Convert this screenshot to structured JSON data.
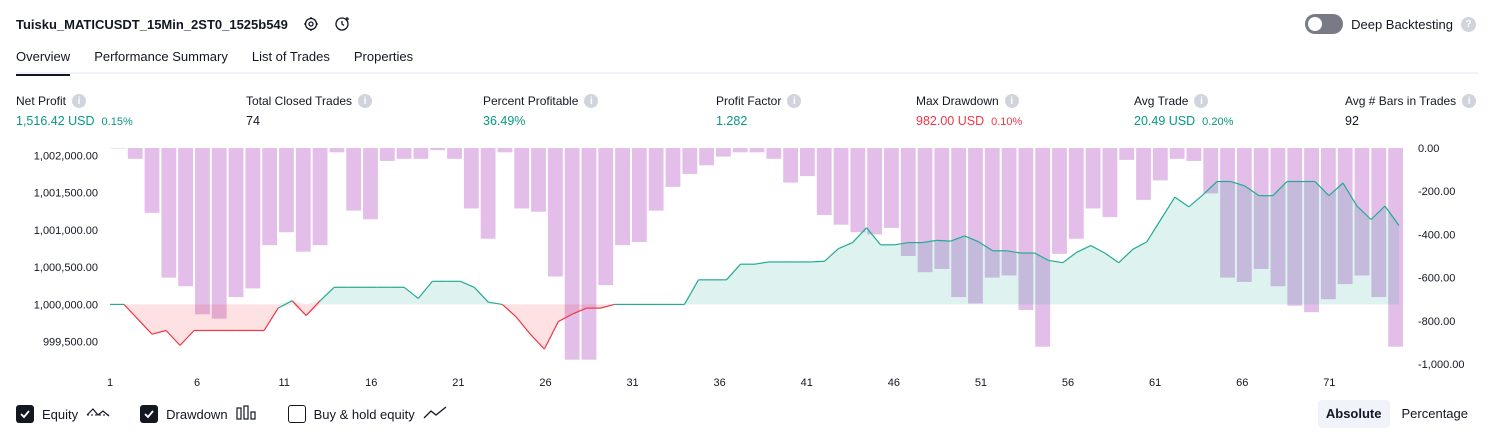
{
  "header": {
    "title": "Tuisku_MATICUSDT_15Min_2ST0_1525b549",
    "settings_icon": "gear-icon",
    "add_alert_icon": "clock-plus-icon",
    "deep_backtesting_label": "Deep Backtesting",
    "deep_backtesting_on": false
  },
  "tabs": [
    {
      "label": "Overview",
      "active": true
    },
    {
      "label": "Performance Summary",
      "active": false
    },
    {
      "label": "List of Trades",
      "active": false
    },
    {
      "label": "Properties",
      "active": false
    }
  ],
  "metrics": [
    {
      "label": "Net Profit",
      "value": "1,516.42 USD",
      "pct": "0.15%",
      "color": "green"
    },
    {
      "label": "Total Closed Trades",
      "value": "74",
      "pct": "",
      "color": "default"
    },
    {
      "label": "Percent Profitable",
      "value": "36.49%",
      "pct": "",
      "color": "green"
    },
    {
      "label": "Profit Factor",
      "value": "1.282",
      "pct": "",
      "color": "green"
    },
    {
      "label": "Max Drawdown",
      "value": "982.00 USD",
      "pct": "0.10%",
      "color": "red"
    },
    {
      "label": "Avg Trade",
      "value": "20.49 USD",
      "pct": "0.20%",
      "color": "green"
    },
    {
      "label": "Avg # Bars in Trades",
      "value": "92",
      "pct": "",
      "color": "default"
    }
  ],
  "chart_data": {
    "type": "line+bar",
    "x_ticks": [
      "1",
      "6",
      "11",
      "16",
      "21",
      "26",
      "31",
      "36",
      "41",
      "46",
      "51",
      "56",
      "61",
      "66",
      "71"
    ],
    "x_range": [
      1,
      75
    ],
    "left_axis": {
      "ticks": [
        "1,002,000.00",
        "1,001,500.00",
        "1,001,000.00",
        "1,000,500.00",
        "1,000,000.00",
        "999,500.00"
      ],
      "tick_values": [
        1002000,
        1001500,
        1001000,
        1000500,
        1000000,
        999500
      ],
      "range": [
        999200,
        1002100
      ]
    },
    "right_axis": {
      "ticks": [
        "0.00",
        "-200.00",
        "-400.00",
        "-600.00",
        "-800.00",
        "-1,000.00"
      ],
      "tick_values": [
        0,
        -200,
        -400,
        -600,
        -800,
        -1000
      ],
      "range": [
        -1000,
        0
      ]
    },
    "baseline": 1000000,
    "series": [
      {
        "name": "Equity",
        "axis": "left",
        "values": [
          1000000,
          1000000,
          999800,
          999600,
          999650,
          999450,
          999650,
          999650,
          999650,
          999650,
          999650,
          999650,
          999950,
          1000050,
          999850,
          1000050,
          1000230,
          1000230,
          1000230,
          1000230,
          1000230,
          1000230,
          1000080,
          1000310,
          1000310,
          1000310,
          1000230,
          1000030,
          1000000,
          999830,
          999600,
          999400,
          999770,
          999870,
          999950,
          999950,
          1000000,
          1000000,
          1000000,
          1000000,
          1000000,
          1000000,
          1000330,
          1000330,
          1000330,
          1000540,
          1000540,
          1000570,
          1000570,
          1000570,
          1000570,
          1000580,
          1000750,
          1000830,
          1001030,
          1000800,
          1000800,
          1000830,
          1000830,
          1000860,
          1000850,
          1000920,
          1000840,
          1000720,
          1000720,
          1000690,
          1000690,
          1000590,
          1000560,
          1000700,
          1000790,
          1000690,
          1000560,
          1000740,
          1000840,
          1001140,
          1001440,
          1001310,
          1001470,
          1001650,
          1001650,
          1001590,
          1001460,
          1001460,
          1001650,
          1001650,
          1001650,
          1001460,
          1001630,
          1001320,
          1001140,
          1001320,
          1001060
        ]
      },
      {
        "name": "Drawdown",
        "axis": "right",
        "values": [
          0,
          -50,
          -300,
          -600,
          -640,
          -770,
          -790,
          -690,
          -650,
          -450,
          -390,
          -480,
          -450,
          -20,
          -290,
          -330,
          -60,
          -50,
          -50,
          -10,
          -50,
          -280,
          -420,
          -20,
          -280,
          -295,
          -595,
          -980,
          -980,
          -635,
          -450,
          -435,
          -290,
          -180,
          -120,
          -80,
          -40,
          -20,
          -20,
          -50,
          -160,
          -130,
          -310,
          -355,
          -390,
          -400,
          -370,
          -500,
          -575,
          -560,
          -690,
          -720,
          -600,
          -590,
          -750,
          -920,
          -490,
          -420,
          -280,
          -320,
          -55,
          -240,
          -150,
          -50,
          -60,
          -210,
          -600,
          -620,
          -560,
          -640,
          -730,
          -760,
          -700,
          -630,
          -590,
          -690,
          -920
        ]
      }
    ],
    "legend": [
      "Equity",
      "Drawdown",
      "Buy & hold equity"
    ],
    "colors": {
      "equity_pos": "#22ab94",
      "equity_neg": "#f23645",
      "drawdown": "#ce93d8"
    }
  },
  "legend": [
    {
      "label": "Equity",
      "checked": true,
      "icon": "equity-line-icon"
    },
    {
      "label": "Drawdown",
      "checked": true,
      "icon": "drawdown-bars-icon"
    },
    {
      "label": "Buy & hold equity",
      "checked": false,
      "icon": "buy-hold-line-icon"
    }
  ],
  "modes": [
    {
      "label": "Absolute",
      "active": true
    },
    {
      "label": "Percentage",
      "active": false
    }
  ]
}
